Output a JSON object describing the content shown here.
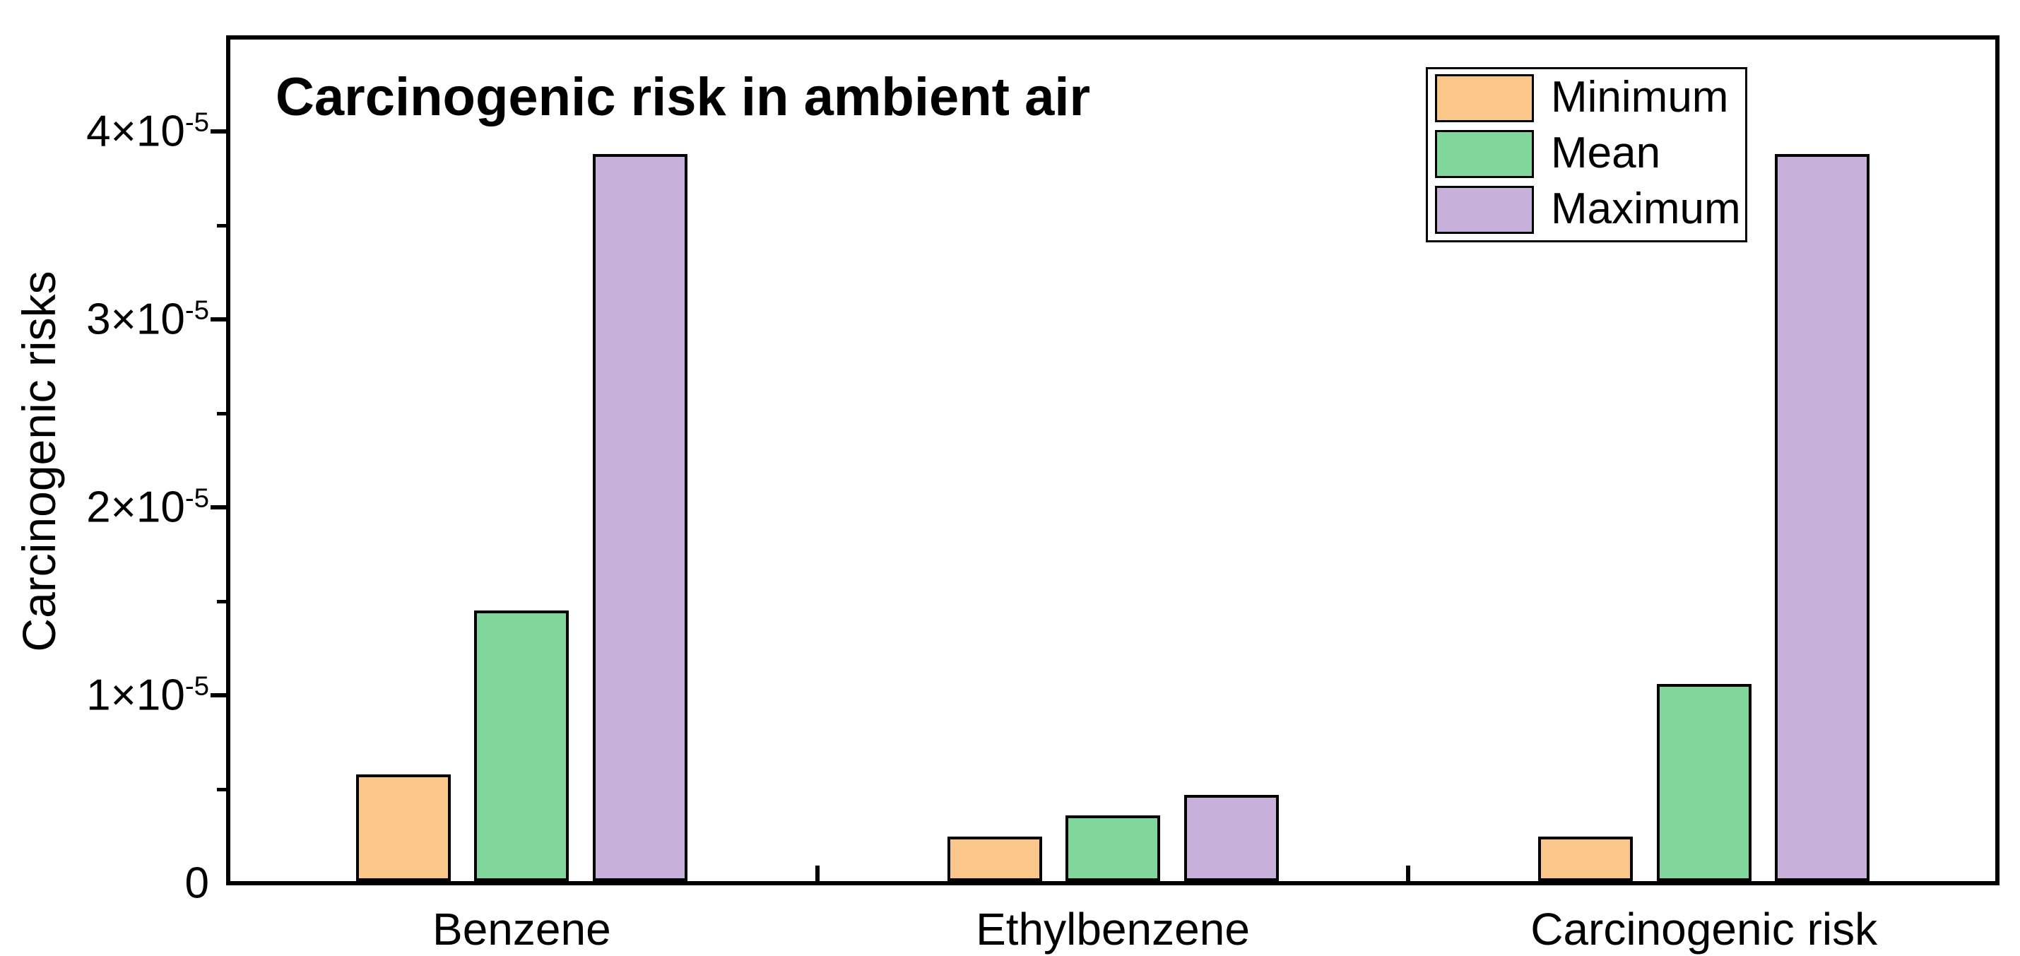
{
  "title": "Carcinogenic risk in ambient air",
  "y_axis": {
    "label": "Carcinogenic risks",
    "ticks": [
      {
        "value": 0,
        "label": "0",
        "sup": ""
      },
      {
        "value": 1e-05,
        "label": "1×10",
        "sup": "-5"
      },
      {
        "value": 2e-05,
        "label": "2×10",
        "sup": "-5"
      },
      {
        "value": 3e-05,
        "label": "3×10",
        "sup": "-5"
      },
      {
        "value": 4e-05,
        "label": "4×10",
        "sup": "-5"
      }
    ]
  },
  "legend": {
    "items": [
      {
        "label": "Minimum",
        "color": "#FAC689"
      },
      {
        "label": "Mean",
        "color": "#80D69B"
      },
      {
        "label": "Maximum",
        "color": "#C7B1DA"
      }
    ]
  },
  "chart_data": {
    "type": "bar",
    "title": "Carcinogenic risk in ambient air",
    "categories": [
      "Benzene",
      "Ethylbenzene",
      "Carcinogenic risk"
    ],
    "series": [
      {
        "name": "Minimum",
        "color": "#FAC689",
        "values": [
          5.8e-06,
          2.5e-06,
          2.5e-06
        ]
      },
      {
        "name": "Mean",
        "color": "#80D69B",
        "values": [
          1.45e-05,
          3.6e-06,
          1.06e-05
        ]
      },
      {
        "name": "Maximum",
        "color": "#C7B1DA",
        "values": [
          3.88e-05,
          4.7e-06,
          3.88e-05
        ]
      }
    ],
    "xlabel": "",
    "ylabel": "Carcinogenic risks",
    "ylim": [
      0,
      4.5e-05
    ],
    "y_major_tick": 1e-05,
    "y_minor_tick": 5e-06,
    "bar_edge_color": "#000000",
    "legend_position": "top-right",
    "grid": false
  }
}
